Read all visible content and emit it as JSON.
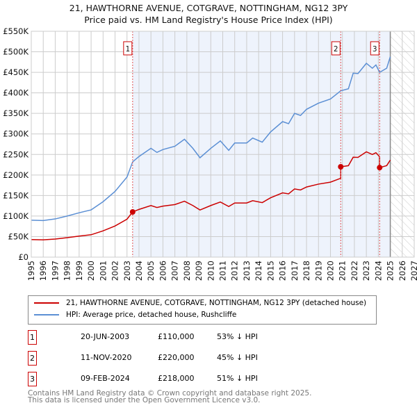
{
  "title": "21, HAWTHORNE AVENUE, COTGRAVE, NOTTINGHAM, NG12 3PY",
  "subtitle": "Price paid vs. HM Land Registry's House Price Index (HPI)",
  "chart_data": {
    "type": "line",
    "ylim": [
      0,
      550000
    ],
    "xlim": [
      1995,
      2027
    ],
    "yticks": [
      "£0",
      "£50K",
      "£100K",
      "£150K",
      "£200K",
      "£250K",
      "£300K",
      "£350K",
      "£400K",
      "£450K",
      "£500K",
      "£550K"
    ],
    "xticks": [
      "1995",
      "1996",
      "1997",
      "1998",
      "1999",
      "2000",
      "2001",
      "2002",
      "2003",
      "2004",
      "2005",
      "2006",
      "2007",
      "2008",
      "2009",
      "2010",
      "2011",
      "2012",
      "2013",
      "2014",
      "2015",
      "2016",
      "2017",
      "2018",
      "2019",
      "2020",
      "2021",
      "2022",
      "2023",
      "2024",
      "2025",
      "2026",
      "2027"
    ],
    "series": [
      {
        "name": "HPI: Average price, detached house, Rushcliffe",
        "color": "#5b8fd4",
        "x": [
          1995,
          1996,
          1997,
          1998,
          1999,
          2000,
          2001,
          2002,
          2003,
          2003.47,
          2004,
          2005,
          2005.5,
          2006,
          2007,
          2007.8,
          2008.5,
          2009.1,
          2010,
          2010.8,
          2011.5,
          2012,
          2013,
          2013.5,
          2014.3,
          2015,
          2016,
          2016.5,
          2017,
          2017.5,
          2018,
          2019,
          2020,
          2020.86,
          2021.5,
          2021.9,
          2022.3,
          2023,
          2023.5,
          2023.8,
          2024.11,
          2024.7,
          2025
        ],
        "y": [
          90000,
          89000,
          93000,
          100000,
          108000,
          115000,
          135000,
          160000,
          195000,
          232000,
          245000,
          265000,
          255000,
          262000,
          270000,
          287000,
          265000,
          242000,
          265000,
          283000,
          260000,
          278000,
          278000,
          290000,
          280000,
          305000,
          330000,
          325000,
          350000,
          345000,
          360000,
          375000,
          385000,
          405000,
          410000,
          448000,
          447000,
          472000,
          460000,
          468000,
          450000,
          460000,
          488000
        ]
      },
      {
        "name": "21, HAWTHORNE AVENUE, COTGRAVE, NOTTINGHAM, NG12 3PY (detached house)",
        "color": "#cc0000"
      }
    ],
    "sales": [
      {
        "n": "1",
        "date": "20-JUN-2003",
        "x": 2003.47,
        "price": "£110,000",
        "value": 110000,
        "hpi": "53% ↓ HPI"
      },
      {
        "n": "2",
        "date": "11-NOV-2020",
        "x": 2020.86,
        "price": "£220,000",
        "value": 220000,
        "hpi": "45% ↓ HPI"
      },
      {
        "n": "3",
        "date": "09-FEB-2024",
        "x": 2024.11,
        "price": "£218,000",
        "value": 218000,
        "hpi": "51% ↓ HPI"
      }
    ]
  },
  "footer1": "Contains HM Land Registry data © Crown copyright and database right 2025.",
  "footer2": "This data is licensed under the Open Government Licence v3.0."
}
